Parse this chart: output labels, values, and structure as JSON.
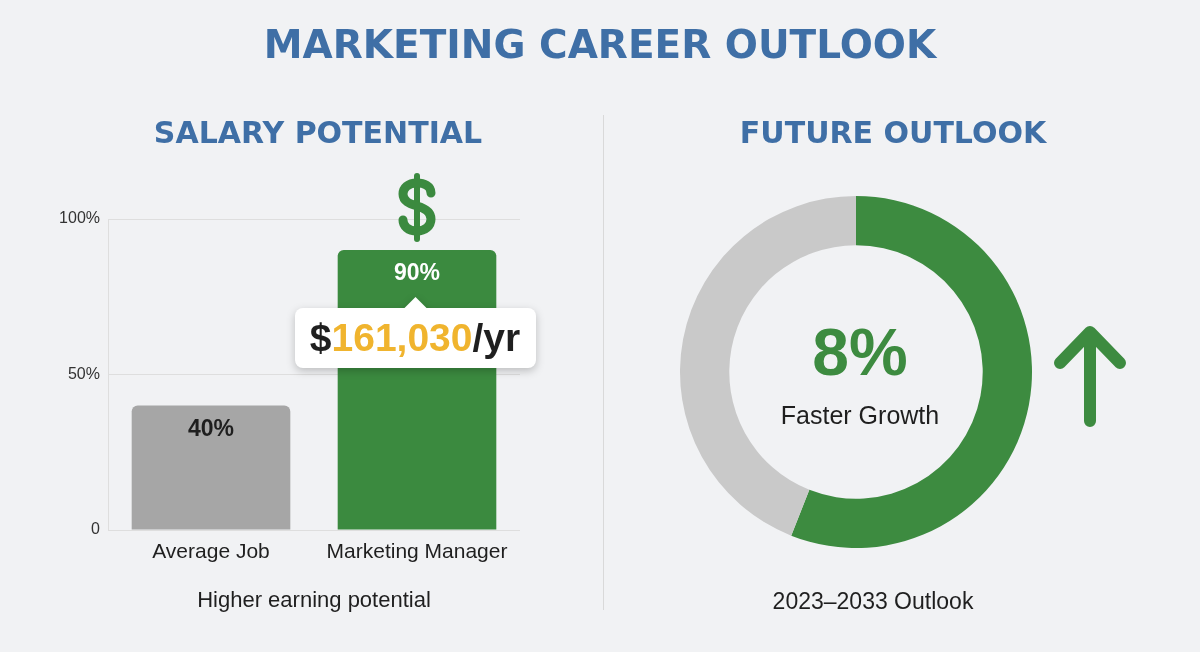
{
  "chart_data": [
    {
      "type": "other",
      "title": "MARKETING CAREER OUTLOOK"
    },
    {
      "type": "bar",
      "title": "SALARY POTENTIAL",
      "xlabel": "Higher earning potential",
      "categories": [
        "Average Job",
        "Marketing Manager"
      ],
      "values": [
        40,
        90
      ],
      "colors": [
        "#a6a6a6",
        "#3b8a3f"
      ],
      "value_labels": [
        "40%",
        "90%"
      ],
      "ylim": [
        0,
        100
      ],
      "yticks": [
        0,
        {
          "value": 50,
          "label": "50%"
        },
        {
          "value": 100,
          "label": "100%"
        }
      ],
      "grid": "y",
      "annotations": [
        "$161,030/yr"
      ]
    },
    {
      "type": "donut",
      "title": "FUTURE OUTLOOK",
      "categories": [
        null,
        null
      ],
      "values": [
        56,
        44
      ],
      "colors": [
        "#3d8b40",
        "#c9c9c9"
      ],
      "annotations": [
        "8%",
        "Faster Growth",
        "2023–2033 Outlook"
      ]
    }
  ]
}
